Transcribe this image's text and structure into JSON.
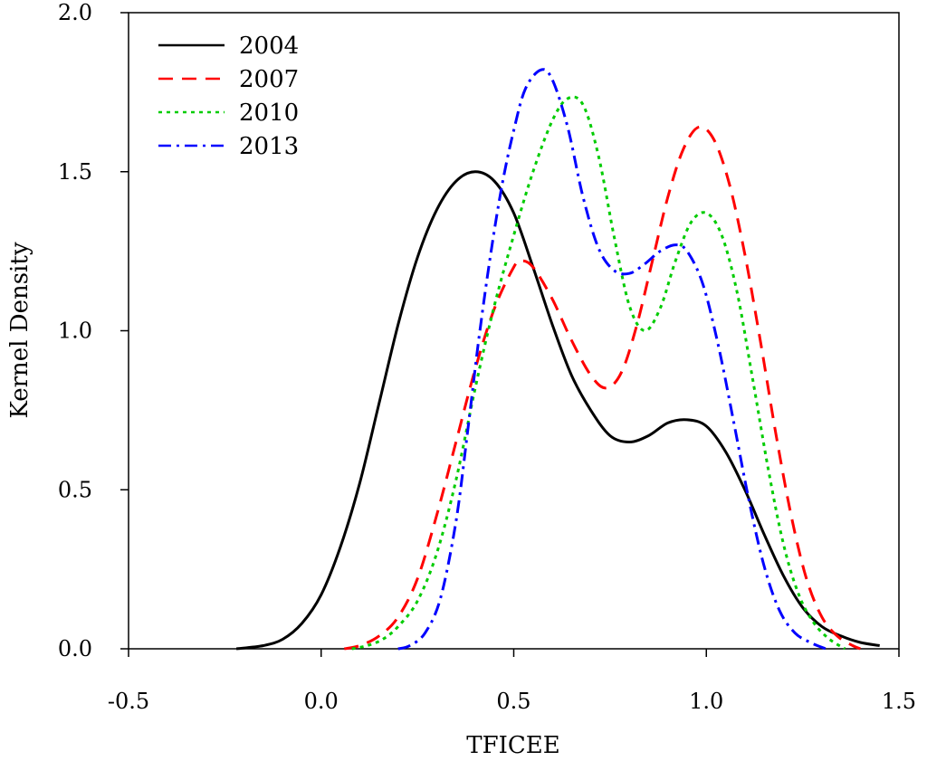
{
  "chart_data": {
    "type": "line",
    "title": "",
    "xlabel": "TFICEE",
    "ylabel": "Kernel Density",
    "xlim": [
      -0.5,
      1.5
    ],
    "ylim": [
      0,
      2.0
    ],
    "xticks": [
      "-0.5",
      "0.0",
      "0.5",
      "1.0",
      "1.5"
    ],
    "yticks": [
      "0.0",
      "0.5",
      "1.0",
      "1.5",
      "2.0"
    ],
    "grid": false,
    "legend_position": "top-left",
    "series": [
      {
        "name": "2004",
        "color": "#000000",
        "style": "solid",
        "points": [
          [
            -0.22,
            0.0
          ],
          [
            -0.15,
            0.01
          ],
          [
            -0.1,
            0.03
          ],
          [
            -0.05,
            0.08
          ],
          [
            0.0,
            0.17
          ],
          [
            0.05,
            0.32
          ],
          [
            0.1,
            0.52
          ],
          [
            0.15,
            0.77
          ],
          [
            0.2,
            1.02
          ],
          [
            0.25,
            1.23
          ],
          [
            0.3,
            1.38
          ],
          [
            0.35,
            1.47
          ],
          [
            0.4,
            1.5
          ],
          [
            0.45,
            1.47
          ],
          [
            0.5,
            1.37
          ],
          [
            0.55,
            1.2
          ],
          [
            0.6,
            1.02
          ],
          [
            0.65,
            0.86
          ],
          [
            0.7,
            0.75
          ],
          [
            0.75,
            0.67
          ],
          [
            0.8,
            0.65
          ],
          [
            0.85,
            0.67
          ],
          [
            0.9,
            0.71
          ],
          [
            0.95,
            0.72
          ],
          [
            1.0,
            0.7
          ],
          [
            1.05,
            0.62
          ],
          [
            1.1,
            0.5
          ],
          [
            1.15,
            0.36
          ],
          [
            1.2,
            0.23
          ],
          [
            1.25,
            0.13
          ],
          [
            1.3,
            0.07
          ],
          [
            1.35,
            0.04
          ],
          [
            1.4,
            0.02
          ],
          [
            1.45,
            0.01
          ]
        ]
      },
      {
        "name": "2007",
        "color": "#ff0000",
        "style": "dashed",
        "points": [
          [
            0.06,
            0.0
          ],
          [
            0.1,
            0.01
          ],
          [
            0.15,
            0.04
          ],
          [
            0.2,
            0.1
          ],
          [
            0.25,
            0.22
          ],
          [
            0.3,
            0.42
          ],
          [
            0.35,
            0.65
          ],
          [
            0.4,
            0.88
          ],
          [
            0.45,
            1.07
          ],
          [
            0.5,
            1.2
          ],
          [
            0.52,
            1.22
          ],
          [
            0.55,
            1.2
          ],
          [
            0.6,
            1.1
          ],
          [
            0.65,
            0.97
          ],
          [
            0.7,
            0.86
          ],
          [
            0.74,
            0.82
          ],
          [
            0.78,
            0.87
          ],
          [
            0.82,
            1.02
          ],
          [
            0.86,
            1.22
          ],
          [
            0.9,
            1.42
          ],
          [
            0.94,
            1.57
          ],
          [
            0.98,
            1.64
          ],
          [
            1.02,
            1.6
          ],
          [
            1.06,
            1.46
          ],
          [
            1.1,
            1.24
          ],
          [
            1.14,
            0.97
          ],
          [
            1.18,
            0.68
          ],
          [
            1.22,
            0.42
          ],
          [
            1.26,
            0.22
          ],
          [
            1.3,
            0.1
          ],
          [
            1.34,
            0.04
          ],
          [
            1.38,
            0.01
          ],
          [
            1.4,
            0.0
          ]
        ]
      },
      {
        "name": "2010",
        "color": "#00cc00",
        "style": "dotted",
        "points": [
          [
            0.08,
            0.0
          ],
          [
            0.12,
            0.01
          ],
          [
            0.16,
            0.03
          ],
          [
            0.2,
            0.07
          ],
          [
            0.25,
            0.15
          ],
          [
            0.3,
            0.3
          ],
          [
            0.35,
            0.53
          ],
          [
            0.4,
            0.82
          ],
          [
            0.45,
            1.08
          ],
          [
            0.5,
            1.3
          ],
          [
            0.55,
            1.5
          ],
          [
            0.6,
            1.66
          ],
          [
            0.64,
            1.73
          ],
          [
            0.68,
            1.71
          ],
          [
            0.72,
            1.55
          ],
          [
            0.76,
            1.3
          ],
          [
            0.8,
            1.08
          ],
          [
            0.84,
            1.0
          ],
          [
            0.88,
            1.07
          ],
          [
            0.92,
            1.22
          ],
          [
            0.96,
            1.34
          ],
          [
            1.0,
            1.37
          ],
          [
            1.04,
            1.3
          ],
          [
            1.08,
            1.12
          ],
          [
            1.12,
            0.85
          ],
          [
            1.16,
            0.57
          ],
          [
            1.2,
            0.33
          ],
          [
            1.24,
            0.17
          ],
          [
            1.28,
            0.08
          ],
          [
            1.32,
            0.03
          ],
          [
            1.36,
            0.0
          ]
        ]
      },
      {
        "name": "2013",
        "color": "#0000ff",
        "style": "dashdot",
        "points": [
          [
            0.2,
            0.0
          ],
          [
            0.23,
            0.01
          ],
          [
            0.27,
            0.05
          ],
          [
            0.31,
            0.16
          ],
          [
            0.35,
            0.4
          ],
          [
            0.38,
            0.68
          ],
          [
            0.41,
            0.98
          ],
          [
            0.44,
            1.24
          ],
          [
            0.47,
            1.46
          ],
          [
            0.5,
            1.63
          ],
          [
            0.53,
            1.76
          ],
          [
            0.57,
            1.82
          ],
          [
            0.6,
            1.79
          ],
          [
            0.64,
            1.64
          ],
          [
            0.68,
            1.42
          ],
          [
            0.72,
            1.26
          ],
          [
            0.76,
            1.19
          ],
          [
            0.8,
            1.18
          ],
          [
            0.84,
            1.21
          ],
          [
            0.88,
            1.25
          ],
          [
            0.92,
            1.27
          ],
          [
            0.95,
            1.25
          ],
          [
            0.99,
            1.15
          ],
          [
            1.03,
            0.96
          ],
          [
            1.07,
            0.72
          ],
          [
            1.11,
            0.47
          ],
          [
            1.15,
            0.26
          ],
          [
            1.19,
            0.12
          ],
          [
            1.23,
            0.05
          ],
          [
            1.27,
            0.02
          ],
          [
            1.31,
            0.0
          ]
        ]
      }
    ]
  }
}
